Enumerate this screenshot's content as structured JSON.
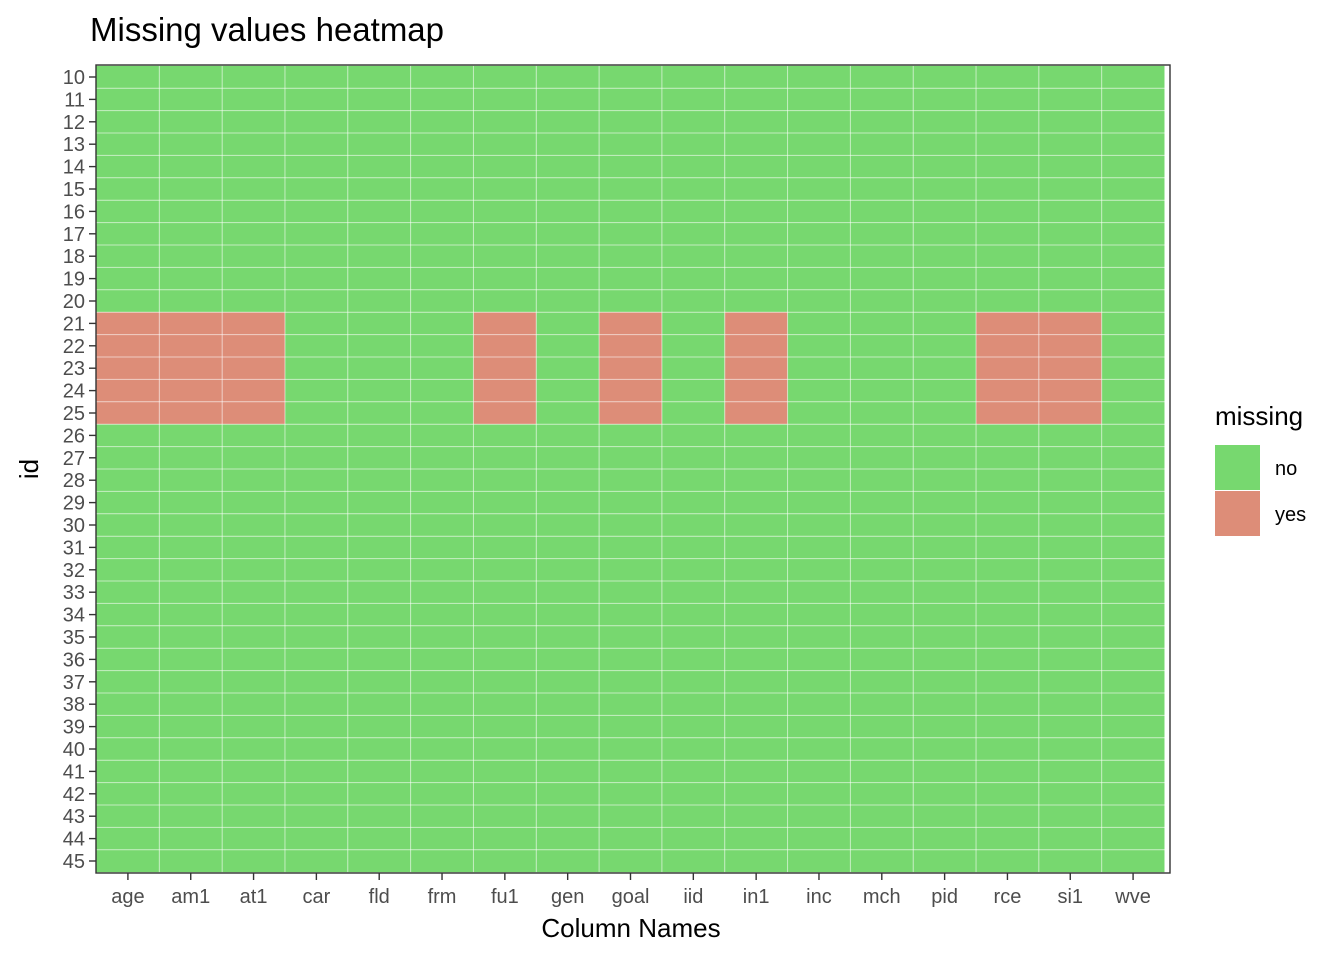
{
  "chart_data": {
    "type": "heatmap",
    "title": "Missing values heatmap",
    "xlabel": "Column Names",
    "ylabel": "id",
    "columns": [
      "age",
      "am1",
      "at1",
      "car",
      "fld",
      "frm",
      "fu1",
      "gen",
      "goal",
      "iid",
      "in1",
      "inc",
      "mch",
      "pid",
      "rce",
      "si1",
      "wve"
    ],
    "rows": [
      "10",
      "11",
      "12",
      "13",
      "14",
      "15",
      "16",
      "17",
      "18",
      "19",
      "20",
      "21",
      "22",
      "23",
      "24",
      "25",
      "26",
      "27",
      "28",
      "29",
      "30",
      "31",
      "32",
      "33",
      "34",
      "35",
      "36",
      "37",
      "38",
      "39",
      "40",
      "41",
      "42",
      "43",
      "44",
      "45"
    ],
    "missing_rows": [
      "21",
      "22",
      "23",
      "24",
      "25"
    ],
    "missing_columns": [
      "age",
      "am1",
      "at1",
      "fu1",
      "goal",
      "in1",
      "rce",
      "si1"
    ],
    "legend": {
      "title": "missing",
      "position": "right",
      "entries": [
        {
          "label": "no",
          "color": "#77d86f"
        },
        {
          "label": "yes",
          "color": "#dd8d78"
        }
      ]
    },
    "grid": true
  }
}
